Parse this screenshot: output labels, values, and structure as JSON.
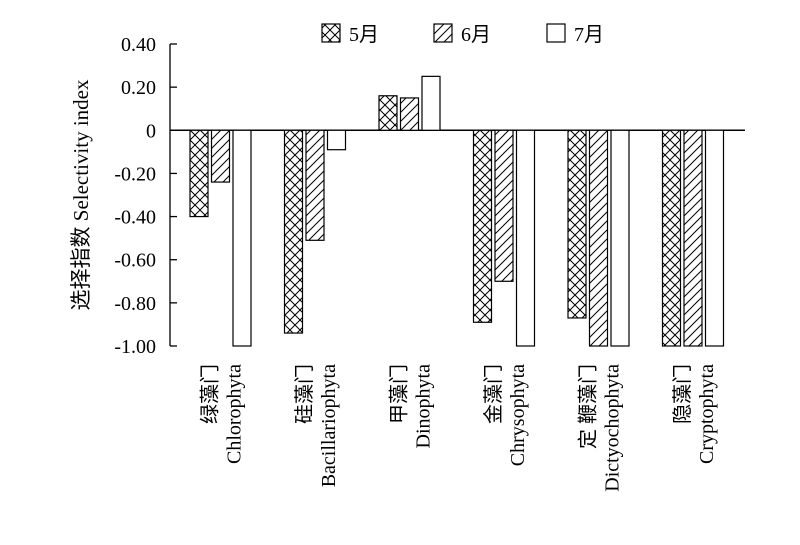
{
  "chart_data": {
    "type": "bar",
    "ylabel": "选择指数 Selectivity index",
    "ylim": [
      -1.0,
      0.4
    ],
    "yticks": [
      0.4,
      0.2,
      0,
      -0.2,
      -0.4,
      -0.6,
      -0.8,
      -1.0
    ],
    "ytick_labels": [
      "0.40",
      "0.20",
      "0",
      "-0.20",
      "-0.40",
      "-0.60",
      "-0.80",
      "-1.00"
    ],
    "categories": [
      {
        "cn": "绿藻门",
        "en": "Chlorophyta"
      },
      {
        "cn": "硅藻门",
        "en": "Bacillariophyta"
      },
      {
        "cn": "甲藻门",
        "en": "Dinophyta"
      },
      {
        "cn": "金藻门",
        "en": "Chrysophyta"
      },
      {
        "cn": "定 鞭藻门",
        "en": "Dictyochophyta"
      },
      {
        "cn": "隐藻门",
        "en": "Cryptophyta"
      }
    ],
    "series": [
      {
        "name": "5月",
        "pattern": "crosshatch",
        "values": [
          -0.4,
          -0.94,
          0.16,
          -0.89,
          -0.87,
          -1.0
        ]
      },
      {
        "name": "6月",
        "pattern": "diagonal",
        "values": [
          -0.24,
          -0.51,
          0.15,
          -0.7,
          -1.0,
          -1.0
        ]
      },
      {
        "name": "7月",
        "pattern": "none",
        "values": [
          -1.0,
          -0.09,
          0.25,
          -1.0,
          -1.0,
          -1.0
        ]
      }
    ],
    "legend_position": "top-center",
    "grid": false
  }
}
